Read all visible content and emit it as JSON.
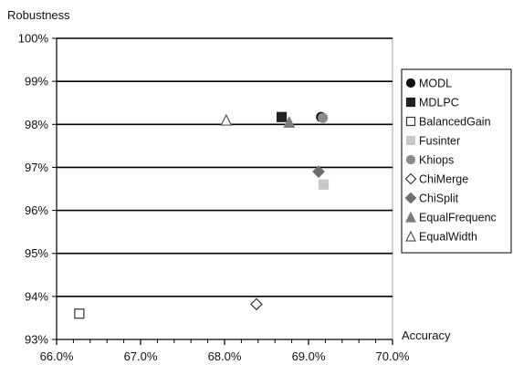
{
  "chart_data": {
    "type": "scatter",
    "title": "",
    "ylabel": "Robustness",
    "xlabel": "Accuracy",
    "xlim": [
      66.0,
      70.0
    ],
    "ylim": [
      93,
      100
    ],
    "x_ticks": [
      66.0,
      67.0,
      68.0,
      69.0,
      70.0
    ],
    "x_tick_labels": [
      "66.0%",
      "67.0%",
      "68.0%",
      "69.0%",
      "70.0%"
    ],
    "y_ticks": [
      93,
      94,
      95,
      96,
      97,
      98,
      99,
      100
    ],
    "y_tick_labels": [
      "93%",
      "94%",
      "95%",
      "96%",
      "97%",
      "98%",
      "99%",
      "100%"
    ],
    "grid": "horizontal",
    "legend_position": "right",
    "series": [
      {
        "name": "MODL",
        "marker": "circle",
        "fill": "#111111",
        "stroke": "#111111",
        "points": [
          {
            "x": 69.15,
            "y": 98.17
          }
        ]
      },
      {
        "name": "MDLPC",
        "marker": "square",
        "fill": "#222222",
        "stroke": "#222222",
        "points": [
          {
            "x": 68.68,
            "y": 98.17
          }
        ]
      },
      {
        "name": "BalancedGain",
        "marker": "square",
        "fill": "#ffffff",
        "stroke": "#333333",
        "points": [
          {
            "x": 66.27,
            "y": 93.6
          }
        ]
      },
      {
        "name": "Fusinter",
        "marker": "square",
        "fill": "#c8c8c8",
        "stroke": "#c8c8c8",
        "points": [
          {
            "x": 69.18,
            "y": 96.6
          }
        ]
      },
      {
        "name": "Khiops",
        "marker": "circle",
        "fill": "#8a8a8a",
        "stroke": "#8a8a8a",
        "points": [
          {
            "x": 69.17,
            "y": 98.15
          }
        ]
      },
      {
        "name": "ChiMerge",
        "marker": "diamond",
        "fill": "#ffffff",
        "stroke": "#333333",
        "points": [
          {
            "x": 68.38,
            "y": 93.82
          }
        ]
      },
      {
        "name": "ChiSplit",
        "marker": "diamond",
        "fill": "#6e6e6e",
        "stroke": "#6e6e6e",
        "points": [
          {
            "x": 69.12,
            "y": 96.9
          }
        ]
      },
      {
        "name": "EqualFrequenc",
        "marker": "triangle",
        "fill": "#7a7a7a",
        "stroke": "#7a7a7a",
        "points": [
          {
            "x": 68.77,
            "y": 98.05
          }
        ]
      },
      {
        "name": "EqualWidth",
        "marker": "triangle",
        "fill": "#ffffff",
        "stroke": "#555555",
        "points": [
          {
            "x": 68.02,
            "y": 98.1
          }
        ]
      }
    ]
  }
}
